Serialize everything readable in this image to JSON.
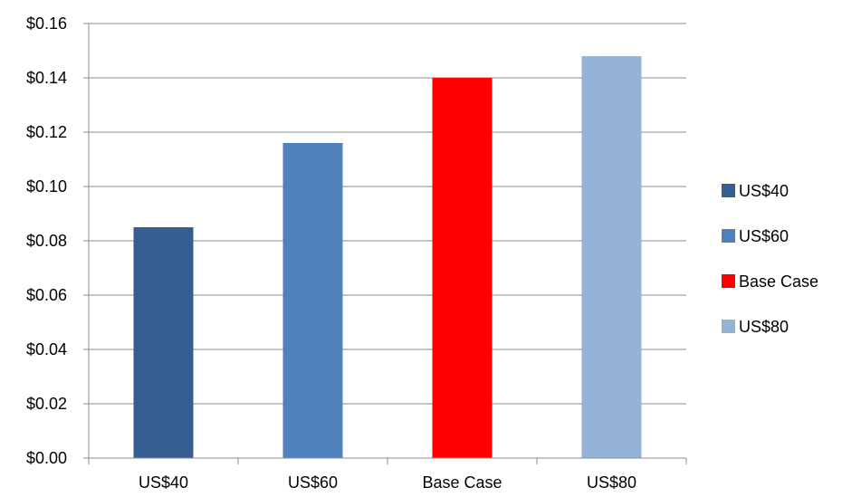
{
  "chart_data": {
    "type": "bar",
    "title": "",
    "xlabel": "",
    "ylabel": "",
    "categories": [
      "US$40",
      "US$60",
      "Base Case",
      "US$80"
    ],
    "values": [
      0.085,
      0.116,
      0.14,
      0.148
    ],
    "colors": [
      "#375E92",
      "#4F81BD",
      "#FF0000",
      "#95B3D7"
    ],
    "ylim": [
      0,
      0.16
    ],
    "yticks": [
      0,
      0.02,
      0.04,
      0.06,
      0.08,
      0.1,
      0.12,
      0.14,
      0.16
    ],
    "ytick_labels": [
      "$0.00",
      "$0.02",
      "$0.04",
      "$0.06",
      "$0.08",
      "$0.10",
      "$0.12",
      "$0.14",
      "$0.16"
    ],
    "grid": true,
    "legend": {
      "placement": "right",
      "entries": [
        "US$40",
        "US$60",
        "Base Case",
        "US$80"
      ]
    }
  }
}
